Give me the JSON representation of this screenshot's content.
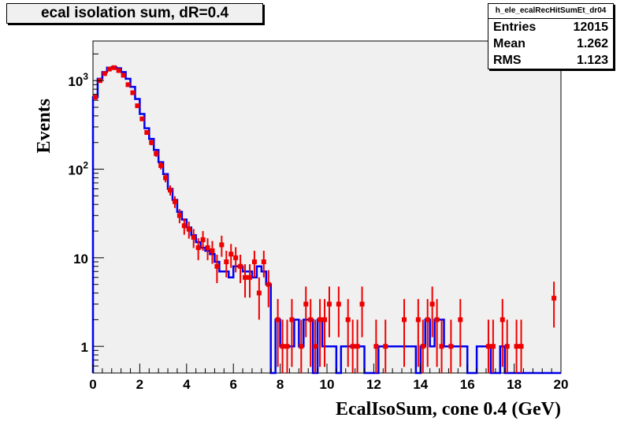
{
  "title": "ecal isolation sum, dR=0.4",
  "stats": {
    "name": "h_ele_ecalRecHitSumEt_dr04",
    "rows": [
      {
        "label": "Entries",
        "value": "12015"
      },
      {
        "label": "Mean",
        "value": "1.262"
      },
      {
        "label": "RMS",
        "value": "1.123"
      }
    ]
  },
  "chart_data": {
    "type": "line",
    "title": "ecal isolation sum, dR=0.4",
    "xlabel": "EcalIsoSum, cone 0.4 (GeV)",
    "ylabel": "Events",
    "xlim": [
      0,
      20
    ],
    "ylim": [
      0.5,
      2800
    ],
    "log_y": true,
    "x_ticks": [
      "0",
      "2",
      "4",
      "6",
      "8",
      "10",
      "12",
      "14",
      "16",
      "18",
      "20"
    ],
    "y_ticks": [
      {
        "value": 1,
        "label": "1"
      },
      {
        "value": 10,
        "label": "10"
      },
      {
        "value": 100,
        "label": "10^2"
      },
      {
        "value": 1000,
        "label": "10^3"
      }
    ],
    "grid": false,
    "series": [
      {
        "style": "histogram",
        "color": "#0000ee",
        "bin_width": 0.2,
        "values": [
          650,
          1050,
          1250,
          1400,
          1420,
          1380,
          1250,
          1050,
          850,
          620,
          420,
          290,
          220,
          165,
          120,
          88,
          60,
          45,
          33,
          27,
          22,
          18,
          15,
          13,
          12,
          11,
          9,
          7,
          7,
          6,
          8,
          8,
          7,
          7,
          6,
          8,
          7,
          5,
          0.5,
          2,
          1,
          1,
          1,
          2,
          1,
          2,
          2,
          0.5,
          2,
          1,
          1,
          1,
          0.5,
          1,
          1,
          1,
          1,
          1,
          0.5,
          0.5,
          0.5,
          1,
          1,
          1,
          1,
          1,
          1,
          1,
          1,
          0.5,
          1,
          2,
          1,
          2,
          2,
          1,
          1,
          1,
          1,
          1,
          0.5,
          0.5,
          1,
          1,
          1,
          0.5,
          0.5,
          1,
          0.5,
          0.5,
          0.5,
          0.5,
          0.5,
          0.5,
          0.5,
          0.5,
          0.5,
          0.5,
          0.5,
          0.5
        ]
      },
      {
        "style": "points-errors",
        "color": "#ee0000",
        "points": [
          {
            "x": 0.1,
            "y": 650
          },
          {
            "x": 0.3,
            "y": 1000
          },
          {
            "x": 0.5,
            "y": 1200
          },
          {
            "x": 0.7,
            "y": 1350
          },
          {
            "x": 0.9,
            "y": 1400
          },
          {
            "x": 1.1,
            "y": 1300
          },
          {
            "x": 1.3,
            "y": 1150
          },
          {
            "x": 1.5,
            "y": 900
          },
          {
            "x": 1.7,
            "y": 730
          },
          {
            "x": 1.9,
            "y": 520
          },
          {
            "x": 2.1,
            "y": 370
          },
          {
            "x": 2.3,
            "y": 260
          },
          {
            "x": 2.5,
            "y": 200
          },
          {
            "x": 2.7,
            "y": 150
          },
          {
            "x": 2.9,
            "y": 110
          },
          {
            "x": 3.1,
            "y": 80
          },
          {
            "x": 3.3,
            "y": 58
          },
          {
            "x": 3.5,
            "y": 43
          },
          {
            "x": 3.7,
            "y": 30
          },
          {
            "x": 3.9,
            "y": 23
          },
          {
            "x": 4.1,
            "y": 21
          },
          {
            "x": 4.3,
            "y": 17
          },
          {
            "x": 4.5,
            "y": 13
          },
          {
            "x": 4.7,
            "y": 16
          },
          {
            "x": 4.9,
            "y": 13
          },
          {
            "x": 5.1,
            "y": 12
          },
          {
            "x": 5.3,
            "y": 8
          },
          {
            "x": 5.5,
            "y": 14
          },
          {
            "x": 5.7,
            "y": 9
          },
          {
            "x": 5.9,
            "y": 11
          },
          {
            "x": 6.1,
            "y": 10
          },
          {
            "x": 6.3,
            "y": 8
          },
          {
            "x": 6.5,
            "y": 6
          },
          {
            "x": 6.7,
            "y": 6
          },
          {
            "x": 6.9,
            "y": 9
          },
          {
            "x": 7.1,
            "y": 4
          },
          {
            "x": 7.3,
            "y": 9
          },
          {
            "x": 7.5,
            "y": 5
          },
          {
            "x": 7.9,
            "y": 2
          },
          {
            "x": 8.1,
            "y": 1
          },
          {
            "x": 8.3,
            "y": 1
          },
          {
            "x": 8.5,
            "y": 2
          },
          {
            "x": 8.9,
            "y": 1
          },
          {
            "x": 9.1,
            "y": 3
          },
          {
            "x": 9.3,
            "y": 2
          },
          {
            "x": 9.5,
            "y": 1
          },
          {
            "x": 9.7,
            "y": 2
          },
          {
            "x": 9.9,
            "y": 2
          },
          {
            "x": 10.1,
            "y": 3
          },
          {
            "x": 10.5,
            "y": 3
          },
          {
            "x": 10.9,
            "y": 2
          },
          {
            "x": 11.1,
            "y": 1
          },
          {
            "x": 11.3,
            "y": 1
          },
          {
            "x": 11.5,
            "y": 3
          },
          {
            "x": 12.1,
            "y": 1
          },
          {
            "x": 12.5,
            "y": 1
          },
          {
            "x": 13.3,
            "y": 2
          },
          {
            "x": 13.9,
            "y": 2
          },
          {
            "x": 14.1,
            "y": 1
          },
          {
            "x": 14.3,
            "y": 2
          },
          {
            "x": 14.5,
            "y": 3
          },
          {
            "x": 14.7,
            "y": 2
          },
          {
            "x": 14.9,
            "y": 1
          },
          {
            "x": 15.3,
            "y": 1
          },
          {
            "x": 15.7,
            "y": 2
          },
          {
            "x": 16.9,
            "y": 1
          },
          {
            "x": 17.1,
            "y": 1
          },
          {
            "x": 17.5,
            "y": 2
          },
          {
            "x": 17.7,
            "y": 1
          },
          {
            "x": 18.1,
            "y": 1
          },
          {
            "x": 18.3,
            "y": 1
          },
          {
            "x": 19.7,
            "y": 3.5
          }
        ]
      }
    ]
  }
}
